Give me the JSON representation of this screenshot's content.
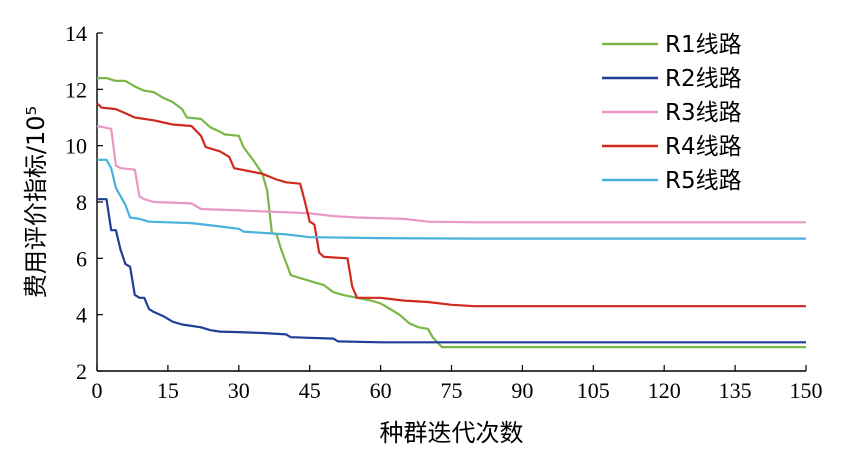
{
  "chart_data": {
    "type": "line",
    "title": "",
    "xlabel": "种群迭代次数",
    "ylabel": "费用评价指标/10⁵",
    "xlim": [
      0,
      150
    ],
    "ylim": [
      2,
      14
    ],
    "xticks": [
      0,
      15,
      30,
      45,
      60,
      75,
      90,
      105,
      120,
      135,
      150
    ],
    "yticks": [
      2,
      4,
      6,
      8,
      10,
      12,
      14
    ],
    "grid": false,
    "legend_position": "top-right",
    "series": [
      {
        "name": "R1线路",
        "color": "#7ab648",
        "points": [
          [
            0,
            12.4
          ],
          [
            2,
            12.4
          ],
          [
            4,
            12.3
          ],
          [
            6,
            12.3
          ],
          [
            8,
            12.1
          ],
          [
            10,
            11.95
          ],
          [
            12,
            11.9
          ],
          [
            14,
            11.7
          ],
          [
            16,
            11.55
          ],
          [
            18,
            11.3
          ],
          [
            19,
            11.0
          ],
          [
            22,
            10.95
          ],
          [
            24,
            10.65
          ],
          [
            26,
            10.5
          ],
          [
            27,
            10.4
          ],
          [
            30,
            10.35
          ],
          [
            31,
            9.95
          ],
          [
            33,
            9.5
          ],
          [
            35,
            9.0
          ],
          [
            36,
            8.4
          ],
          [
            37,
            6.9
          ],
          [
            38,
            6.85
          ],
          [
            39,
            6.3
          ],
          [
            40,
            5.85
          ],
          [
            41,
            5.4
          ],
          [
            43,
            5.3
          ],
          [
            46,
            5.15
          ],
          [
            48,
            5.05
          ],
          [
            50,
            4.8
          ],
          [
            52,
            4.7
          ],
          [
            55,
            4.6
          ],
          [
            58,
            4.5
          ],
          [
            60,
            4.4
          ],
          [
            62,
            4.2
          ],
          [
            64,
            4.0
          ],
          [
            66,
            3.7
          ],
          [
            68,
            3.55
          ],
          [
            70,
            3.5
          ],
          [
            71,
            3.2
          ],
          [
            73,
            2.85
          ],
          [
            80,
            2.85
          ],
          [
            100,
            2.85
          ],
          [
            150,
            2.85
          ]
        ]
      },
      {
        "name": "R2线路",
        "color": "#1f3f96",
        "points": [
          [
            0,
            8.1
          ],
          [
            2,
            8.1
          ],
          [
            3,
            7.0
          ],
          [
            4,
            7.0
          ],
          [
            5,
            6.3
          ],
          [
            6,
            5.8
          ],
          [
            7,
            5.7
          ],
          [
            8,
            4.7
          ],
          [
            9,
            4.6
          ],
          [
            10,
            4.6
          ],
          [
            11,
            4.2
          ],
          [
            12,
            4.1
          ],
          [
            14,
            3.95
          ],
          [
            16,
            3.75
          ],
          [
            18,
            3.65
          ],
          [
            20,
            3.6
          ],
          [
            22,
            3.55
          ],
          [
            24,
            3.45
          ],
          [
            26,
            3.4
          ],
          [
            30,
            3.38
          ],
          [
            35,
            3.35
          ],
          [
            40,
            3.3
          ],
          [
            41,
            3.2
          ],
          [
            50,
            3.15
          ],
          [
            51,
            3.05
          ],
          [
            60,
            3.02
          ],
          [
            80,
            3.02
          ],
          [
            150,
            3.02
          ]
        ]
      },
      {
        "name": "R3线路",
        "color": "#e898c4",
        "points": [
          [
            0,
            10.7
          ],
          [
            3,
            10.6
          ],
          [
            4,
            9.3
          ],
          [
            5,
            9.2
          ],
          [
            8,
            9.15
          ],
          [
            9,
            8.2
          ],
          [
            10,
            8.1
          ],
          [
            12,
            8.0
          ],
          [
            20,
            7.95
          ],
          [
            22,
            7.75
          ],
          [
            30,
            7.7
          ],
          [
            45,
            7.6
          ],
          [
            50,
            7.5
          ],
          [
            55,
            7.45
          ],
          [
            65,
            7.4
          ],
          [
            70,
            7.3
          ],
          [
            80,
            7.28
          ],
          [
            150,
            7.28
          ]
        ]
      },
      {
        "name": "R4线路",
        "color": "#cf2a1d",
        "points": [
          [
            0,
            11.5
          ],
          [
            1,
            11.35
          ],
          [
            4,
            11.3
          ],
          [
            6,
            11.15
          ],
          [
            8,
            11.0
          ],
          [
            12,
            10.9
          ],
          [
            16,
            10.75
          ],
          [
            20,
            10.7
          ],
          [
            22,
            10.35
          ],
          [
            23,
            9.95
          ],
          [
            26,
            9.8
          ],
          [
            28,
            9.6
          ],
          [
            29,
            9.2
          ],
          [
            32,
            9.1
          ],
          [
            35,
            9.0
          ],
          [
            38,
            8.8
          ],
          [
            40,
            8.7
          ],
          [
            43,
            8.65
          ],
          [
            44,
            8.0
          ],
          [
            45,
            7.3
          ],
          [
            46,
            7.2
          ],
          [
            47,
            6.2
          ],
          [
            48,
            6.05
          ],
          [
            53,
            6.0
          ],
          [
            54,
            5.0
          ],
          [
            55,
            4.6
          ],
          [
            60,
            4.6
          ],
          [
            65,
            4.5
          ],
          [
            70,
            4.45
          ],
          [
            75,
            4.35
          ],
          [
            80,
            4.3
          ],
          [
            150,
            4.3
          ]
        ]
      },
      {
        "name": "R5线路",
        "color": "#48b2dd",
        "points": [
          [
            0,
            9.5
          ],
          [
            2,
            9.5
          ],
          [
            3,
            9.2
          ],
          [
            4,
            8.5
          ],
          [
            6,
            7.9
          ],
          [
            7,
            7.45
          ],
          [
            9,
            7.4
          ],
          [
            11,
            7.3
          ],
          [
            15,
            7.28
          ],
          [
            20,
            7.25
          ],
          [
            25,
            7.15
          ],
          [
            30,
            7.05
          ],
          [
            31,
            6.95
          ],
          [
            40,
            6.85
          ],
          [
            45,
            6.75
          ],
          [
            60,
            6.72
          ],
          [
            80,
            6.7
          ],
          [
            150,
            6.7
          ]
        ]
      }
    ]
  }
}
